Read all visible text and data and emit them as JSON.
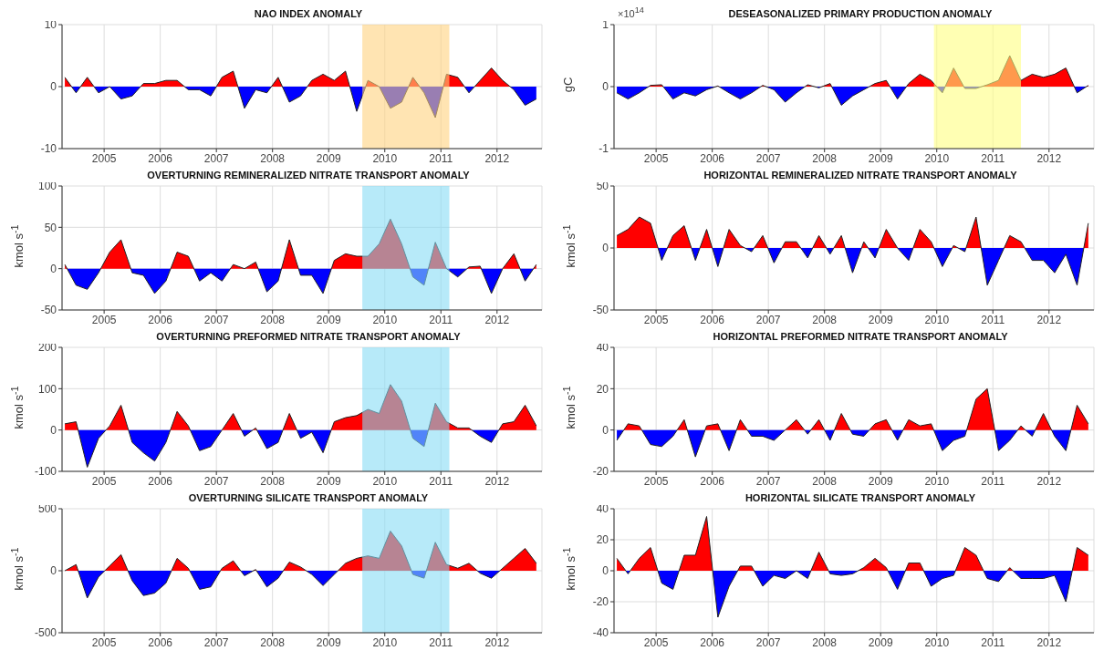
{
  "chart_data": [
    {
      "type": "area",
      "title": "NAO INDEX ANOMALY",
      "x": [
        2004.3,
        2004.5,
        2004.7,
        2004.9,
        2005.1,
        2005.3,
        2005.5,
        2005.7,
        2005.9,
        2006.1,
        2006.3,
        2006.5,
        2006.7,
        2006.9,
        2007.1,
        2007.3,
        2007.5,
        2007.7,
        2007.9,
        2008.1,
        2008.3,
        2008.5,
        2008.7,
        2008.9,
        2009.1,
        2009.3,
        2009.5,
        2009.7,
        2009.9,
        2010.1,
        2010.3,
        2010.5,
        2010.7,
        2010.9,
        2011.1,
        2011.3,
        2011.5,
        2011.7,
        2011.9,
        2012.1,
        2012.3,
        2012.5,
        2012.7
      ],
      "xlim": [
        2004.25,
        2012.8
      ],
      "xticks": [
        2005,
        2006,
        2007,
        2008,
        2009,
        2010,
        2011,
        2012
      ],
      "ylim": [
        -10,
        10
      ],
      "yticks": [
        -10,
        0,
        10
      ],
      "grid": true,
      "series": [
        {
          "colors": [
            "#ff0000",
            "#0000ff",
            "#ff0000",
            "#0000ff",
            "#ff0000",
            "#0000ff",
            "#0000ff",
            "#ff0000",
            "#ff0000",
            "#ff0000",
            "#ff0000",
            "#0000ff",
            "#0000ff",
            "#0000ff",
            "#ff0000",
            "#ff0000",
            "#0000ff",
            "#0000ff",
            "#0000ff",
            "#ff0000",
            "#0000ff",
            "#0000ff",
            "#ff0000",
            "#ff0000",
            "#ff0000",
            "#ff0000",
            "#0000ff",
            "#ff0000",
            "#ff0000",
            "#0000ff",
            "#0000ff",
            "#ff0000",
            "#0000ff",
            "#0000ff",
            "#ff0000",
            "#ff0000",
            "#0000ff",
            "#ff0000",
            "#ff0000",
            "#ff0000",
            "#0000ff",
            "#0000ff",
            "#0000ff"
          ],
          "values": [
            1.5,
            -1,
            1.5,
            -1,
            0,
            -2,
            -1.5,
            0.5,
            0.5,
            1,
            1,
            -0.5,
            -0.5,
            -1.5,
            1.5,
            2.5,
            -3.5,
            -0.5,
            -1,
            1.5,
            -2.5,
            -1.5,
            1,
            2,
            1,
            2.5,
            -4,
            1,
            0,
            -3.5,
            -2.5,
            1.5,
            -1,
            -5,
            2,
            1.5,
            -1,
            1,
            3,
            1,
            -0.5,
            -3,
            -2
          ]
        }
      ],
      "bands": [
        {
          "axis": "x",
          "from": 2009.6,
          "to": 2011.15,
          "color": "#ffd27f"
        }
      ]
    },
    {
      "type": "area",
      "title": "DESEASONALIZED PRIMARY PRODUCTION ANOMALY",
      "ylabel": "gC",
      "annotations": [
        "×10$^{14}$"
      ],
      "x": [
        2004.3,
        2004.5,
        2004.7,
        2004.9,
        2005.1,
        2005.3,
        2005.5,
        2005.7,
        2005.9,
        2006.1,
        2006.3,
        2006.5,
        2006.7,
        2006.9,
        2007.1,
        2007.3,
        2007.5,
        2007.7,
        2007.9,
        2008.1,
        2008.3,
        2008.5,
        2008.7,
        2008.9,
        2009.1,
        2009.3,
        2009.5,
        2009.7,
        2009.9,
        2010.1,
        2010.3,
        2010.5,
        2010.7,
        2010.9,
        2011.1,
        2011.3,
        2011.5,
        2011.7,
        2011.9,
        2012.1,
        2012.3,
        2012.5,
        2012.7
      ],
      "xlim": [
        2004.25,
        2012.8
      ],
      "xticks": [
        2005,
        2006,
        2007,
        2008,
        2009,
        2010,
        2011,
        2012
      ],
      "ylim": [
        -1,
        1
      ],
      "yticks": [
        -1,
        0,
        1
      ],
      "grid": true,
      "series": [
        {
          "colors": [
            "#0000ff",
            "#0000ff",
            "#0000ff",
            "#ff0000",
            "#ff0000",
            "#0000ff",
            "#0000ff",
            "#0000ff",
            "#0000ff",
            "#ff0000",
            "#0000ff",
            "#0000ff",
            "#0000ff",
            "#ff0000",
            "#0000ff",
            "#0000ff",
            "#0000ff",
            "#ff0000",
            "#0000ff",
            "#ff0000",
            "#0000ff",
            "#0000ff",
            "#0000ff",
            "#ff0000",
            "#ff0000",
            "#0000ff",
            "#ff0000",
            "#ff0000",
            "#ff0000",
            "#0000ff",
            "#ff0000",
            "#0000ff",
            "#0000ff",
            "#ff0000",
            "#ff0000",
            "#ff0000",
            "#ff0000",
            "#ff0000",
            "#ff0000",
            "#ff0000",
            "#ff0000",
            "#0000ff",
            "#ff0000"
          ],
          "values": [
            -0.1,
            -0.2,
            -0.1,
            0.02,
            0.03,
            -0.2,
            -0.1,
            -0.15,
            -0.05,
            0.01,
            -0.1,
            -0.2,
            -0.1,
            0.02,
            -0.05,
            -0.25,
            -0.1,
            0.03,
            -0.02,
            0.05,
            -0.3,
            -0.15,
            -0.05,
            0.05,
            0.1,
            -0.2,
            0.05,
            0.2,
            0.1,
            -0.1,
            0.3,
            -0.03,
            -0.03,
            0.03,
            0.1,
            0.5,
            0.1,
            0.2,
            0.15,
            0.2,
            0.3,
            -0.1,
            0.02
          ]
        }
      ],
      "bands": [
        {
          "axis": "x",
          "from": 2009.95,
          "to": 2011.5,
          "color": "#ffff80"
        }
      ]
    },
    {
      "type": "area",
      "title": "OVERTURNING REMINERALIZED NITRATE TRANSPORT ANOMALY",
      "ylabel": "kmol s$^{-1}$",
      "x": [
        2004.3,
        2004.5,
        2004.7,
        2004.9,
        2005.1,
        2005.3,
        2005.5,
        2005.7,
        2005.9,
        2006.1,
        2006.3,
        2006.5,
        2006.7,
        2006.9,
        2007.1,
        2007.3,
        2007.5,
        2007.7,
        2007.9,
        2008.1,
        2008.3,
        2008.5,
        2008.7,
        2008.9,
        2009.1,
        2009.3,
        2009.5,
        2009.7,
        2009.9,
        2010.1,
        2010.3,
        2010.5,
        2010.7,
        2010.9,
        2011.1,
        2011.3,
        2011.5,
        2011.7,
        2011.9,
        2012.1,
        2012.3,
        2012.5,
        2012.7
      ],
      "xlim": [
        2004.25,
        2012.8
      ],
      "xticks": [
        2005,
        2006,
        2007,
        2008,
        2009,
        2010,
        2011,
        2012
      ],
      "ylim": [
        -50,
        100
      ],
      "yticks": [
        -50,
        0,
        50,
        100
      ],
      "grid": true,
      "series": [
        {
          "colors": [
            "#ff0000",
            "#0000ff",
            "#0000ff",
            "#0000ff",
            "#ff0000",
            "#ff0000",
            "#0000ff",
            "#0000ff",
            "#0000ff",
            "#0000ff",
            "#ff0000",
            "#ff0000",
            "#0000ff",
            "#0000ff",
            "#0000ff",
            "#ff0000",
            "#ff0000",
            "#ff0000",
            "#0000ff",
            "#0000ff",
            "#ff0000",
            "#0000ff",
            "#0000ff",
            "#0000ff",
            "#ff0000",
            "#ff0000",
            "#ff0000",
            "#ff0000",
            "#ff0000",
            "#ff0000",
            "#ff0000",
            "#0000ff",
            "#0000ff",
            "#ff0000",
            "#ff0000",
            "#0000ff",
            "#ff0000",
            "#ff0000",
            "#0000ff",
            "#ff0000",
            "#ff0000",
            "#0000ff",
            "#ff0000"
          ],
          "values": [
            5,
            -20,
            -25,
            -5,
            20,
            35,
            -5,
            -8,
            -30,
            -15,
            20,
            15,
            -15,
            -5,
            -15,
            5,
            0,
            8,
            -28,
            -15,
            35,
            -8,
            -8,
            -30,
            10,
            18,
            15,
            15,
            30,
            60,
            30,
            -10,
            -20,
            32,
            0,
            -10,
            2,
            3,
            -30,
            0,
            18,
            -15,
            5
          ]
        }
      ],
      "bands": [
        {
          "axis": "x",
          "from": 2009.6,
          "to": 2011.15,
          "color": "#87dcf5"
        }
      ]
    },
    {
      "type": "area",
      "title": "HORIZONTAL REMINERALIZED NITRATE TRANSPORT ANOMALY",
      "ylabel": "kmol s$^{-1}$",
      "x": [
        2004.3,
        2004.5,
        2004.7,
        2004.9,
        2005.1,
        2005.3,
        2005.5,
        2005.7,
        2005.9,
        2006.1,
        2006.3,
        2006.5,
        2006.7,
        2006.9,
        2007.1,
        2007.3,
        2007.5,
        2007.7,
        2007.9,
        2008.1,
        2008.3,
        2008.5,
        2008.7,
        2008.9,
        2009.1,
        2009.3,
        2009.5,
        2009.7,
        2009.9,
        2010.1,
        2010.3,
        2010.5,
        2010.7,
        2010.9,
        2011.1,
        2011.3,
        2011.5,
        2011.7,
        2011.9,
        2012.1,
        2012.3,
        2012.5,
        2012.7
      ],
      "xlim": [
        2004.25,
        2012.8
      ],
      "xticks": [
        2005,
        2006,
        2007,
        2008,
        2009,
        2010,
        2011,
        2012
      ],
      "ylim": [
        -50,
        50
      ],
      "yticks": [
        -50,
        0,
        50
      ],
      "grid": true,
      "series": [
        {
          "colors": [
            "#ff0000",
            "#ff0000",
            "#ff0000",
            "#ff0000",
            "#0000ff",
            "#ff0000",
            "#ff0000",
            "#0000ff",
            "#ff0000",
            "#0000ff",
            "#ff0000",
            "#ff0000",
            "#0000ff",
            "#ff0000",
            "#0000ff",
            "#ff0000",
            "#ff0000",
            "#0000ff",
            "#ff0000",
            "#0000ff",
            "#ff0000",
            "#0000ff",
            "#ff0000",
            "#0000ff",
            "#ff0000",
            "#ff0000",
            "#0000ff",
            "#ff0000",
            "#ff0000",
            "#0000ff",
            "#ff0000",
            "#0000ff",
            "#ff0000",
            "#0000ff",
            "#0000ff",
            "#ff0000",
            "#ff0000",
            "#0000ff",
            "#0000ff",
            "#0000ff",
            "#0000ff",
            "#0000ff",
            "#ff0000"
          ],
          "values": [
            10,
            15,
            25,
            20,
            -10,
            10,
            18,
            -10,
            15,
            -15,
            15,
            2,
            -3,
            10,
            -12,
            5,
            5,
            -8,
            10,
            -5,
            10,
            -20,
            5,
            -8,
            15,
            0,
            -10,
            15,
            5,
            -15,
            2,
            -3,
            25,
            -30,
            -10,
            10,
            5,
            -10,
            -10,
            -20,
            -5,
            -30,
            20
          ]
        }
      ]
    },
    {
      "type": "area",
      "title": "OVERTURNING PREFORMED NITRATE TRANSPORT ANOMALY",
      "ylabel": "kmol s$^{-1}$",
      "x": [
        2004.3,
        2004.5,
        2004.7,
        2004.9,
        2005.1,
        2005.3,
        2005.5,
        2005.7,
        2005.9,
        2006.1,
        2006.3,
        2006.5,
        2006.7,
        2006.9,
        2007.1,
        2007.3,
        2007.5,
        2007.7,
        2007.9,
        2008.1,
        2008.3,
        2008.5,
        2008.7,
        2008.9,
        2009.1,
        2009.3,
        2009.5,
        2009.7,
        2009.9,
        2010.1,
        2010.3,
        2010.5,
        2010.7,
        2010.9,
        2011.1,
        2011.3,
        2011.5,
        2011.7,
        2011.9,
        2012.1,
        2012.3,
        2012.5,
        2012.7
      ],
      "xlim": [
        2004.25,
        2012.8
      ],
      "xticks": [
        2005,
        2006,
        2007,
        2008,
        2009,
        2010,
        2011,
        2012
      ],
      "ylim": [
        -100,
        200
      ],
      "yticks": [
        -100,
        0,
        100,
        200
      ],
      "grid": true,
      "series": [
        {
          "colors": [
            "#ff0000",
            "#ff0000",
            "#0000ff",
            "#0000ff",
            "#ff0000",
            "#ff0000",
            "#0000ff",
            "#0000ff",
            "#0000ff",
            "#0000ff",
            "#ff0000",
            "#ff0000",
            "#0000ff",
            "#0000ff",
            "#ff0000",
            "#ff0000",
            "#0000ff",
            "#ff0000",
            "#0000ff",
            "#0000ff",
            "#ff0000",
            "#0000ff",
            "#0000ff",
            "#0000ff",
            "#ff0000",
            "#ff0000",
            "#ff0000",
            "#ff0000",
            "#ff0000",
            "#ff0000",
            "#ff0000",
            "#0000ff",
            "#0000ff",
            "#ff0000",
            "#ff0000",
            "#ff0000",
            "#ff0000",
            "#0000ff",
            "#0000ff",
            "#ff0000",
            "#ff0000",
            "#ff0000",
            "#ff0000"
          ],
          "values": [
            15,
            20,
            -90,
            -20,
            10,
            60,
            -30,
            -55,
            -75,
            -30,
            45,
            10,
            -50,
            -40,
            0,
            40,
            -15,
            5,
            -45,
            -30,
            40,
            -20,
            -5,
            -55,
            20,
            30,
            35,
            50,
            40,
            110,
            70,
            -20,
            -40,
            65,
            20,
            5,
            5,
            -15,
            -30,
            15,
            20,
            60,
            10
          ]
        }
      ],
      "bands": [
        {
          "axis": "x",
          "from": 2009.6,
          "to": 2011.15,
          "color": "#87dcf5"
        }
      ]
    },
    {
      "type": "area",
      "title": "HORIZONTAL PREFORMED NITRATE TRANSPORT ANOMALY",
      "ylabel": "kmol s$^{-1}$",
      "x": [
        2004.3,
        2004.5,
        2004.7,
        2004.9,
        2005.1,
        2005.3,
        2005.5,
        2005.7,
        2005.9,
        2006.1,
        2006.3,
        2006.5,
        2006.7,
        2006.9,
        2007.1,
        2007.3,
        2007.5,
        2007.7,
        2007.9,
        2008.1,
        2008.3,
        2008.5,
        2008.7,
        2008.9,
        2009.1,
        2009.3,
        2009.5,
        2009.7,
        2009.9,
        2010.1,
        2010.3,
        2010.5,
        2010.7,
        2010.9,
        2011.1,
        2011.3,
        2011.5,
        2011.7,
        2011.9,
        2012.1,
        2012.3,
        2012.5,
        2012.7
      ],
      "xlim": [
        2004.25,
        2012.8
      ],
      "xticks": [
        2005,
        2006,
        2007,
        2008,
        2009,
        2010,
        2011,
        2012
      ],
      "ylim": [
        -20,
        40
      ],
      "yticks": [
        -20,
        0,
        20,
        40
      ],
      "grid": true,
      "series": [
        {
          "colors": [
            "#0000ff",
            "#ff0000",
            "#ff0000",
            "#0000ff",
            "#0000ff",
            "#0000ff",
            "#ff0000",
            "#0000ff",
            "#ff0000",
            "#ff0000",
            "#0000ff",
            "#ff0000",
            "#0000ff",
            "#0000ff",
            "#0000ff",
            "#ff0000",
            "#ff0000",
            "#0000ff",
            "#ff0000",
            "#0000ff",
            "#ff0000",
            "#0000ff",
            "#0000ff",
            "#ff0000",
            "#ff0000",
            "#0000ff",
            "#ff0000",
            "#ff0000",
            "#ff0000",
            "#0000ff",
            "#0000ff",
            "#0000ff",
            "#ff0000",
            "#ff0000",
            "#0000ff",
            "#0000ff",
            "#ff0000",
            "#0000ff",
            "#ff0000",
            "#0000ff",
            "#0000ff",
            "#ff0000",
            "#ff0000"
          ],
          "values": [
            -5,
            3,
            2,
            -7,
            -8,
            -3,
            5,
            -13,
            2,
            3,
            -10,
            5,
            -3,
            -3,
            -5,
            0,
            5,
            -2,
            5,
            -5,
            8,
            -2,
            -3,
            3,
            5,
            -5,
            5,
            2,
            3,
            -10,
            -5,
            -3,
            15,
            20,
            -10,
            -5,
            2,
            -3,
            8,
            -3,
            -10,
            12,
            3
          ]
        }
      ]
    },
    {
      "type": "area",
      "title": "OVERTURNING SILICATE TRANSPORT ANOMALY",
      "ylabel": "kmol s$^{-1}$",
      "x": [
        2004.3,
        2004.5,
        2004.7,
        2004.9,
        2005.1,
        2005.3,
        2005.5,
        2005.7,
        2005.9,
        2006.1,
        2006.3,
        2006.5,
        2006.7,
        2006.9,
        2007.1,
        2007.3,
        2007.5,
        2007.7,
        2007.9,
        2008.1,
        2008.3,
        2008.5,
        2008.7,
        2008.9,
        2009.1,
        2009.3,
        2009.5,
        2009.7,
        2009.9,
        2010.1,
        2010.3,
        2010.5,
        2010.7,
        2010.9,
        2011.1,
        2011.3,
        2011.5,
        2011.7,
        2011.9,
        2012.1,
        2012.3,
        2012.5,
        2012.7
      ],
      "xlim": [
        2004.25,
        2012.8
      ],
      "xticks": [
        2005,
        2006,
        2007,
        2008,
        2009,
        2010,
        2011,
        2012
      ],
      "ylim": [
        -500,
        500
      ],
      "yticks": [
        -500,
        0,
        500
      ],
      "grid": true,
      "series": [
        {
          "colors": [
            "#ff0000",
            "#ff0000",
            "#0000ff",
            "#0000ff",
            "#ff0000",
            "#ff0000",
            "#0000ff",
            "#0000ff",
            "#0000ff",
            "#0000ff",
            "#ff0000",
            "#ff0000",
            "#0000ff",
            "#0000ff",
            "#ff0000",
            "#ff0000",
            "#0000ff",
            "#ff0000",
            "#0000ff",
            "#0000ff",
            "#ff0000",
            "#ff0000",
            "#0000ff",
            "#0000ff",
            "#0000ff",
            "#ff0000",
            "#ff0000",
            "#ff0000",
            "#ff0000",
            "#ff0000",
            "#ff0000",
            "#0000ff",
            "#0000ff",
            "#ff0000",
            "#ff0000",
            "#ff0000",
            "#ff0000",
            "#0000ff",
            "#0000ff",
            "#ff0000",
            "#ff0000",
            "#ff0000",
            "#ff0000"
          ],
          "values": [
            0,
            50,
            -220,
            -50,
            40,
            130,
            -80,
            -200,
            -180,
            -100,
            100,
            20,
            -150,
            -130,
            20,
            80,
            -40,
            10,
            -130,
            -60,
            70,
            30,
            -30,
            -120,
            -30,
            60,
            100,
            120,
            100,
            320,
            200,
            -30,
            -60,
            230,
            50,
            20,
            60,
            -20,
            -60,
            20,
            100,
            180,
            60
          ]
        }
      ],
      "bands": [
        {
          "axis": "x",
          "from": 2009.6,
          "to": 2011.15,
          "color": "#87dcf5"
        }
      ]
    },
    {
      "type": "area",
      "title": "HORIZONTAL SILICATE TRANSPORT ANOMALY",
      "ylabel": "kmol s$^{-1}$",
      "x": [
        2004.3,
        2004.5,
        2004.7,
        2004.9,
        2005.1,
        2005.3,
        2005.5,
        2005.7,
        2005.9,
        2006.1,
        2006.3,
        2006.5,
        2006.7,
        2006.9,
        2007.1,
        2007.3,
        2007.5,
        2007.7,
        2007.9,
        2008.1,
        2008.3,
        2008.5,
        2008.7,
        2008.9,
        2009.1,
        2009.3,
        2009.5,
        2009.7,
        2009.9,
        2010.1,
        2010.3,
        2010.5,
        2010.7,
        2010.9,
        2011.1,
        2011.3,
        2011.5,
        2011.7,
        2011.9,
        2012.1,
        2012.3,
        2012.5,
        2012.7
      ],
      "xlim": [
        2004.25,
        2012.8
      ],
      "xticks": [
        2005,
        2006,
        2007,
        2008,
        2009,
        2010,
        2011,
        2012
      ],
      "ylim": [
        -40,
        40
      ],
      "yticks": [
        -40,
        -20,
        0,
        20,
        40
      ],
      "grid": true,
      "series": [
        {
          "colors": [
            "#ff0000",
            "#0000ff",
            "#ff0000",
            "#ff0000",
            "#0000ff",
            "#0000ff",
            "#ff0000",
            "#ff0000",
            "#ff0000",
            "#0000ff",
            "#0000ff",
            "#ff0000",
            "#ff0000",
            "#0000ff",
            "#0000ff",
            "#0000ff",
            "#ff0000",
            "#0000ff",
            "#ff0000",
            "#0000ff",
            "#0000ff",
            "#0000ff",
            "#ff0000",
            "#ff0000",
            "#ff0000",
            "#0000ff",
            "#ff0000",
            "#ff0000",
            "#0000ff",
            "#0000ff",
            "#0000ff",
            "#ff0000",
            "#ff0000",
            "#0000ff",
            "#0000ff",
            "#ff0000",
            "#0000ff",
            "#0000ff",
            "#0000ff",
            "#0000ff",
            "#0000ff",
            "#ff0000",
            "#ff0000"
          ],
          "values": [
            8,
            -2,
            8,
            15,
            -8,
            -12,
            10,
            10,
            35,
            -30,
            -10,
            3,
            3,
            -10,
            -3,
            -5,
            0,
            -5,
            12,
            -2,
            -3,
            -2,
            2,
            8,
            2,
            -12,
            5,
            5,
            -10,
            -5,
            -3,
            15,
            10,
            -5,
            -7,
            2,
            -5,
            -5,
            -5,
            -3,
            -20,
            15,
            10
          ]
        }
      ]
    }
  ]
}
